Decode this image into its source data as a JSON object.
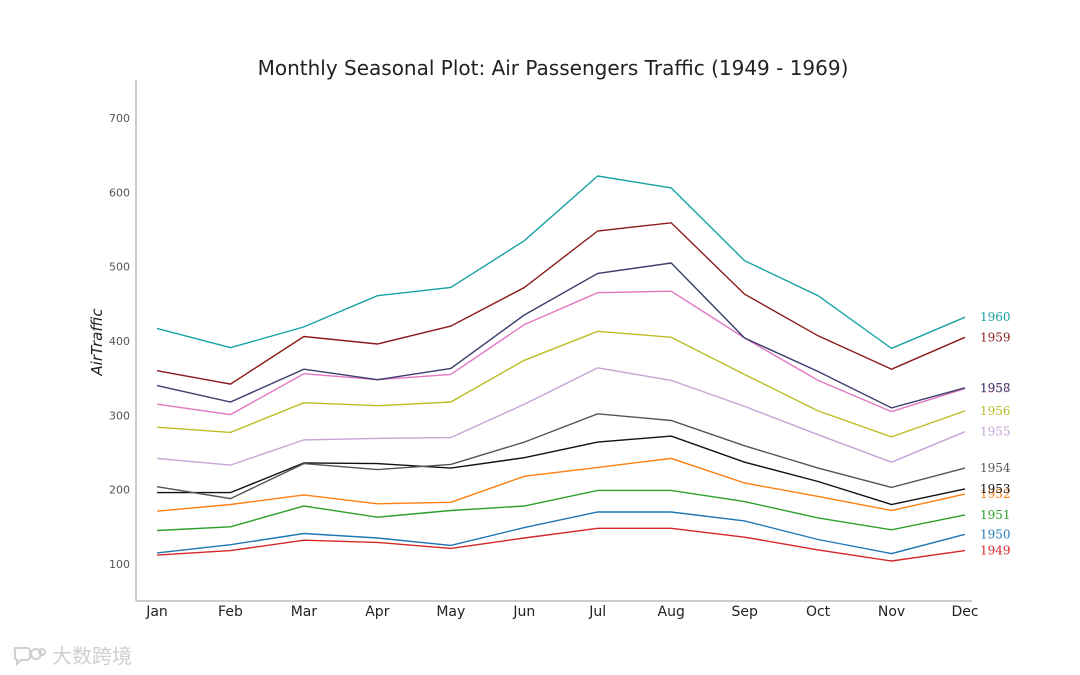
{
  "chart_data": {
    "type": "line",
    "title": "Monthly Seasonal Plot: Air Passengers Traffic (1949 - 1969)",
    "xlabel": "",
    "ylabel": "AirTraffic",
    "categories": [
      "Jan",
      "Feb",
      "Mar",
      "Apr",
      "May",
      "Jun",
      "Jul",
      "Aug",
      "Sep",
      "Oct",
      "Nov",
      "Dec"
    ],
    "yticks": [
      100,
      200,
      300,
      400,
      500,
      600,
      700
    ],
    "ylim": [
      50,
      750
    ],
    "grid": false,
    "series": [
      {
        "name": "1949",
        "color": "#d62728",
        "values": [
          112,
          118,
          132,
          129,
          121,
          135,
          148,
          148,
          136,
          119,
          104,
          118
        ]
      },
      {
        "name": "1950",
        "color": "#1f77b4",
        "values": [
          115,
          126,
          141,
          135,
          125,
          149,
          170,
          170,
          158,
          133,
          114,
          140
        ]
      },
      {
        "name": "1951",
        "color": "#2ca02c",
        "values": [
          145,
          150,
          178,
          163,
          172,
          178,
          199,
          199,
          184,
          162,
          146,
          166
        ]
      },
      {
        "name": "1952",
        "color": "#ff7f0e",
        "values": [
          171,
          180,
          193,
          181,
          183,
          218,
          230,
          242,
          209,
          191,
          172,
          194
        ]
      },
      {
        "name": "1953",
        "color": "#111111",
        "values": [
          196,
          196,
          236,
          235,
          229,
          243,
          264,
          272,
          237,
          211,
          180,
          201
        ]
      },
      {
        "name": "1954",
        "color": "#555555",
        "values": [
          204,
          188,
          235,
          227,
          234,
          264,
          302,
          293,
          259,
          229,
          203,
          229
        ]
      },
      {
        "name": "1955",
        "color": "#c5a3d6",
        "values": [
          242,
          233,
          267,
          269,
          270,
          315,
          364,
          347,
          312,
          274,
          237,
          278
        ]
      },
      {
        "name": "1956",
        "color": "#bcbd22",
        "values": [
          284,
          277,
          317,
          313,
          318,
          374,
          413,
          405,
          355,
          306,
          271,
          306
        ]
      },
      {
        "name": "1957",
        "color": "#e377c2",
        "values": [
          315,
          301,
          356,
          348,
          355,
          422,
          465,
          467,
          404,
          347,
          305,
          336
        ]
      },
      {
        "name": "1958",
        "color": "#3a3f6b",
        "values": [
          340,
          318,
          362,
          348,
          363,
          435,
          491,
          505,
          404,
          359,
          310,
          337
        ]
      },
      {
        "name": "1959",
        "color": "#8b1a1a",
        "values": [
          360,
          342,
          406,
          396,
          420,
          472,
          548,
          559,
          463,
          407,
          362,
          405
        ]
      },
      {
        "name": "1960",
        "color": "#17a2a2",
        "values": [
          417,
          391,
          419,
          461,
          472,
          535,
          622,
          606,
          508,
          461,
          390,
          432
        ]
      }
    ]
  },
  "watermark": {
    "text": "大数跨境",
    "icon": "chat-bubble-logo-icon"
  }
}
